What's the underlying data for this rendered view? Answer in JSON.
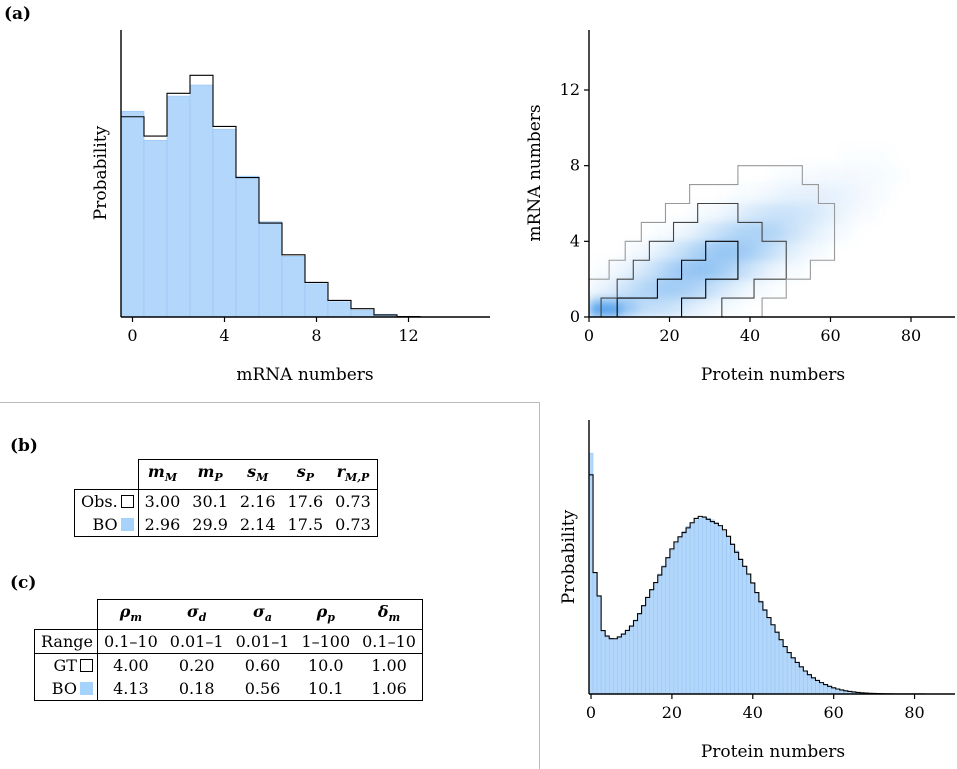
{
  "panels": {
    "a": "(a)",
    "b": "(b)",
    "c": "(c)"
  },
  "colors": {
    "bo_fill": "#b3d7fb",
    "bo_edge": "#95c4f4",
    "obs_line": "#000000",
    "heat": "#3d95ea"
  },
  "table_b": {
    "headers": [
      "m_M",
      "m_P",
      "s_M",
      "s_P",
      "r_M,P"
    ],
    "rows": [
      {
        "label": "Obs.",
        "marker": "open-square",
        "values": [
          "3.00",
          "30.1",
          "2.16",
          "17.6",
          "0.73"
        ]
      },
      {
        "label": "BO",
        "marker": "filled-square",
        "values": [
          "2.96",
          "29.9",
          "2.14",
          "17.5",
          "0.73"
        ]
      }
    ]
  },
  "table_c": {
    "headers": [
      "ρ_m",
      "σ_d",
      "σ_a",
      "ρ_p",
      "δ_m"
    ],
    "rows": [
      {
        "label": "Range",
        "marker": "",
        "values": [
          "0.1–10",
          "0.01–1",
          "0.01–1",
          "1–100",
          "0.1–10"
        ]
      },
      {
        "label": "GT",
        "marker": "open-square",
        "values": [
          "4.00",
          "0.20",
          "0.60",
          "10.0",
          "1.00"
        ]
      },
      {
        "label": "BO",
        "marker": "filled-square",
        "values": [
          "4.13",
          "0.18",
          "0.56",
          "10.1",
          "1.06"
        ]
      }
    ]
  },
  "chart_data": [
    {
      "id": "mrna_hist",
      "type": "bar",
      "xlabel": "mRNA numbers",
      "ylabel": "Probability",
      "xticks": [
        0,
        4,
        8,
        12
      ],
      "xlim": [
        -0.5,
        15.5
      ],
      "ylim": [
        0,
        0.21
      ],
      "categories": [
        0,
        1,
        2,
        3,
        4,
        5,
        6,
        7,
        8,
        9,
        10,
        11,
        12,
        13,
        14,
        15
      ],
      "series": [
        {
          "name": "BO",
          "values": [
            0.149,
            0.128,
            0.16,
            0.168,
            0.136,
            0.102,
            0.069,
            0.044,
            0.024,
            0.011,
            0.005,
            0.002,
            0.0005,
            0,
            0,
            0
          ]
        },
        {
          "name": "Obs.",
          "values": [
            0.145,
            0.131,
            0.162,
            0.175,
            0.138,
            0.101,
            0.068,
            0.045,
            0.025,
            0.012,
            0.006,
            0.0015,
            0.0003,
            0,
            0,
            0
          ]
        }
      ]
    },
    {
      "id": "joint_heatmap",
      "type": "heatmap",
      "xlabel": "Protein numbers",
      "ylabel": "mRNA numbers",
      "xticks": [
        0,
        20,
        40,
        60,
        80
      ],
      "yticks": [
        0,
        4,
        8,
        12
      ],
      "xlim": [
        0,
        90
      ],
      "ylim": [
        0,
        15
      ],
      "contours": [
        {
          "level": "inner",
          "gray": "#000000",
          "points": [
            [
              7,
              0
            ],
            [
              7,
              1
            ],
            [
              17,
              1
            ],
            [
              17,
              2
            ],
            [
              23,
              2
            ],
            [
              23,
              3
            ],
            [
              29,
              3
            ],
            [
              29,
              4
            ],
            [
              37,
              4
            ],
            [
              37,
              3
            ],
            [
              37,
              2
            ],
            [
              29,
              2
            ],
            [
              29,
              1
            ],
            [
              23,
              1
            ],
            [
              23,
              0
            ]
          ]
        },
        {
          "level": "middle",
          "gray": "#444444",
          "points": [
            [
              3,
              0
            ],
            [
              3,
              1
            ],
            [
              7,
              1
            ],
            [
              7,
              2
            ],
            [
              11,
              2
            ],
            [
              11,
              3
            ],
            [
              15,
              3
            ],
            [
              15,
              4
            ],
            [
              21,
              4
            ],
            [
              21,
              5
            ],
            [
              27,
              5
            ],
            [
              27,
              6
            ],
            [
              37,
              6
            ],
            [
              37,
              5
            ],
            [
              43,
              5
            ],
            [
              43,
              4
            ],
            [
              49,
              4
            ],
            [
              49,
              3
            ],
            [
              49,
              2
            ],
            [
              41,
              2
            ],
            [
              41,
              1
            ],
            [
              33,
              1
            ],
            [
              33,
              0
            ]
          ]
        },
        {
          "level": "outer",
          "gray": "#999999",
          "points": [
            [
              0,
              0
            ],
            [
              0,
              2
            ],
            [
              5,
              2
            ],
            [
              5,
              3
            ],
            [
              9,
              3
            ],
            [
              9,
              4
            ],
            [
              13,
              4
            ],
            [
              13,
              5
            ],
            [
              19,
              5
            ],
            [
              19,
              6
            ],
            [
              25,
              6
            ],
            [
              25,
              7
            ],
            [
              37,
              7
            ],
            [
              37,
              8
            ],
            [
              53,
              8
            ],
            [
              53,
              7
            ],
            [
              57,
              7
            ],
            [
              57,
              6
            ],
            [
              61,
              6
            ],
            [
              61,
              5
            ],
            [
              61,
              4
            ],
            [
              61,
              3
            ],
            [
              55,
              3
            ],
            [
              55,
              2
            ],
            [
              49,
              2
            ],
            [
              49,
              1
            ],
            [
              43,
              1
            ],
            [
              43,
              0
            ]
          ]
        }
      ]
    },
    {
      "id": "protein_hist",
      "type": "bar",
      "xlabel": "Protein numbers",
      "ylabel": "Probability",
      "xticks": [
        0,
        20,
        40,
        60,
        80
      ],
      "xlim": [
        -0.5,
        90
      ],
      "ylim": [
        0,
        0.035
      ],
      "peak_at_zero": 0.031,
      "shape": "spike at 0 (~0.031), dip to ~0.0108 near 5, broad peak ~0.0227 near 28, tail to ~0.0005 at 90"
    }
  ]
}
